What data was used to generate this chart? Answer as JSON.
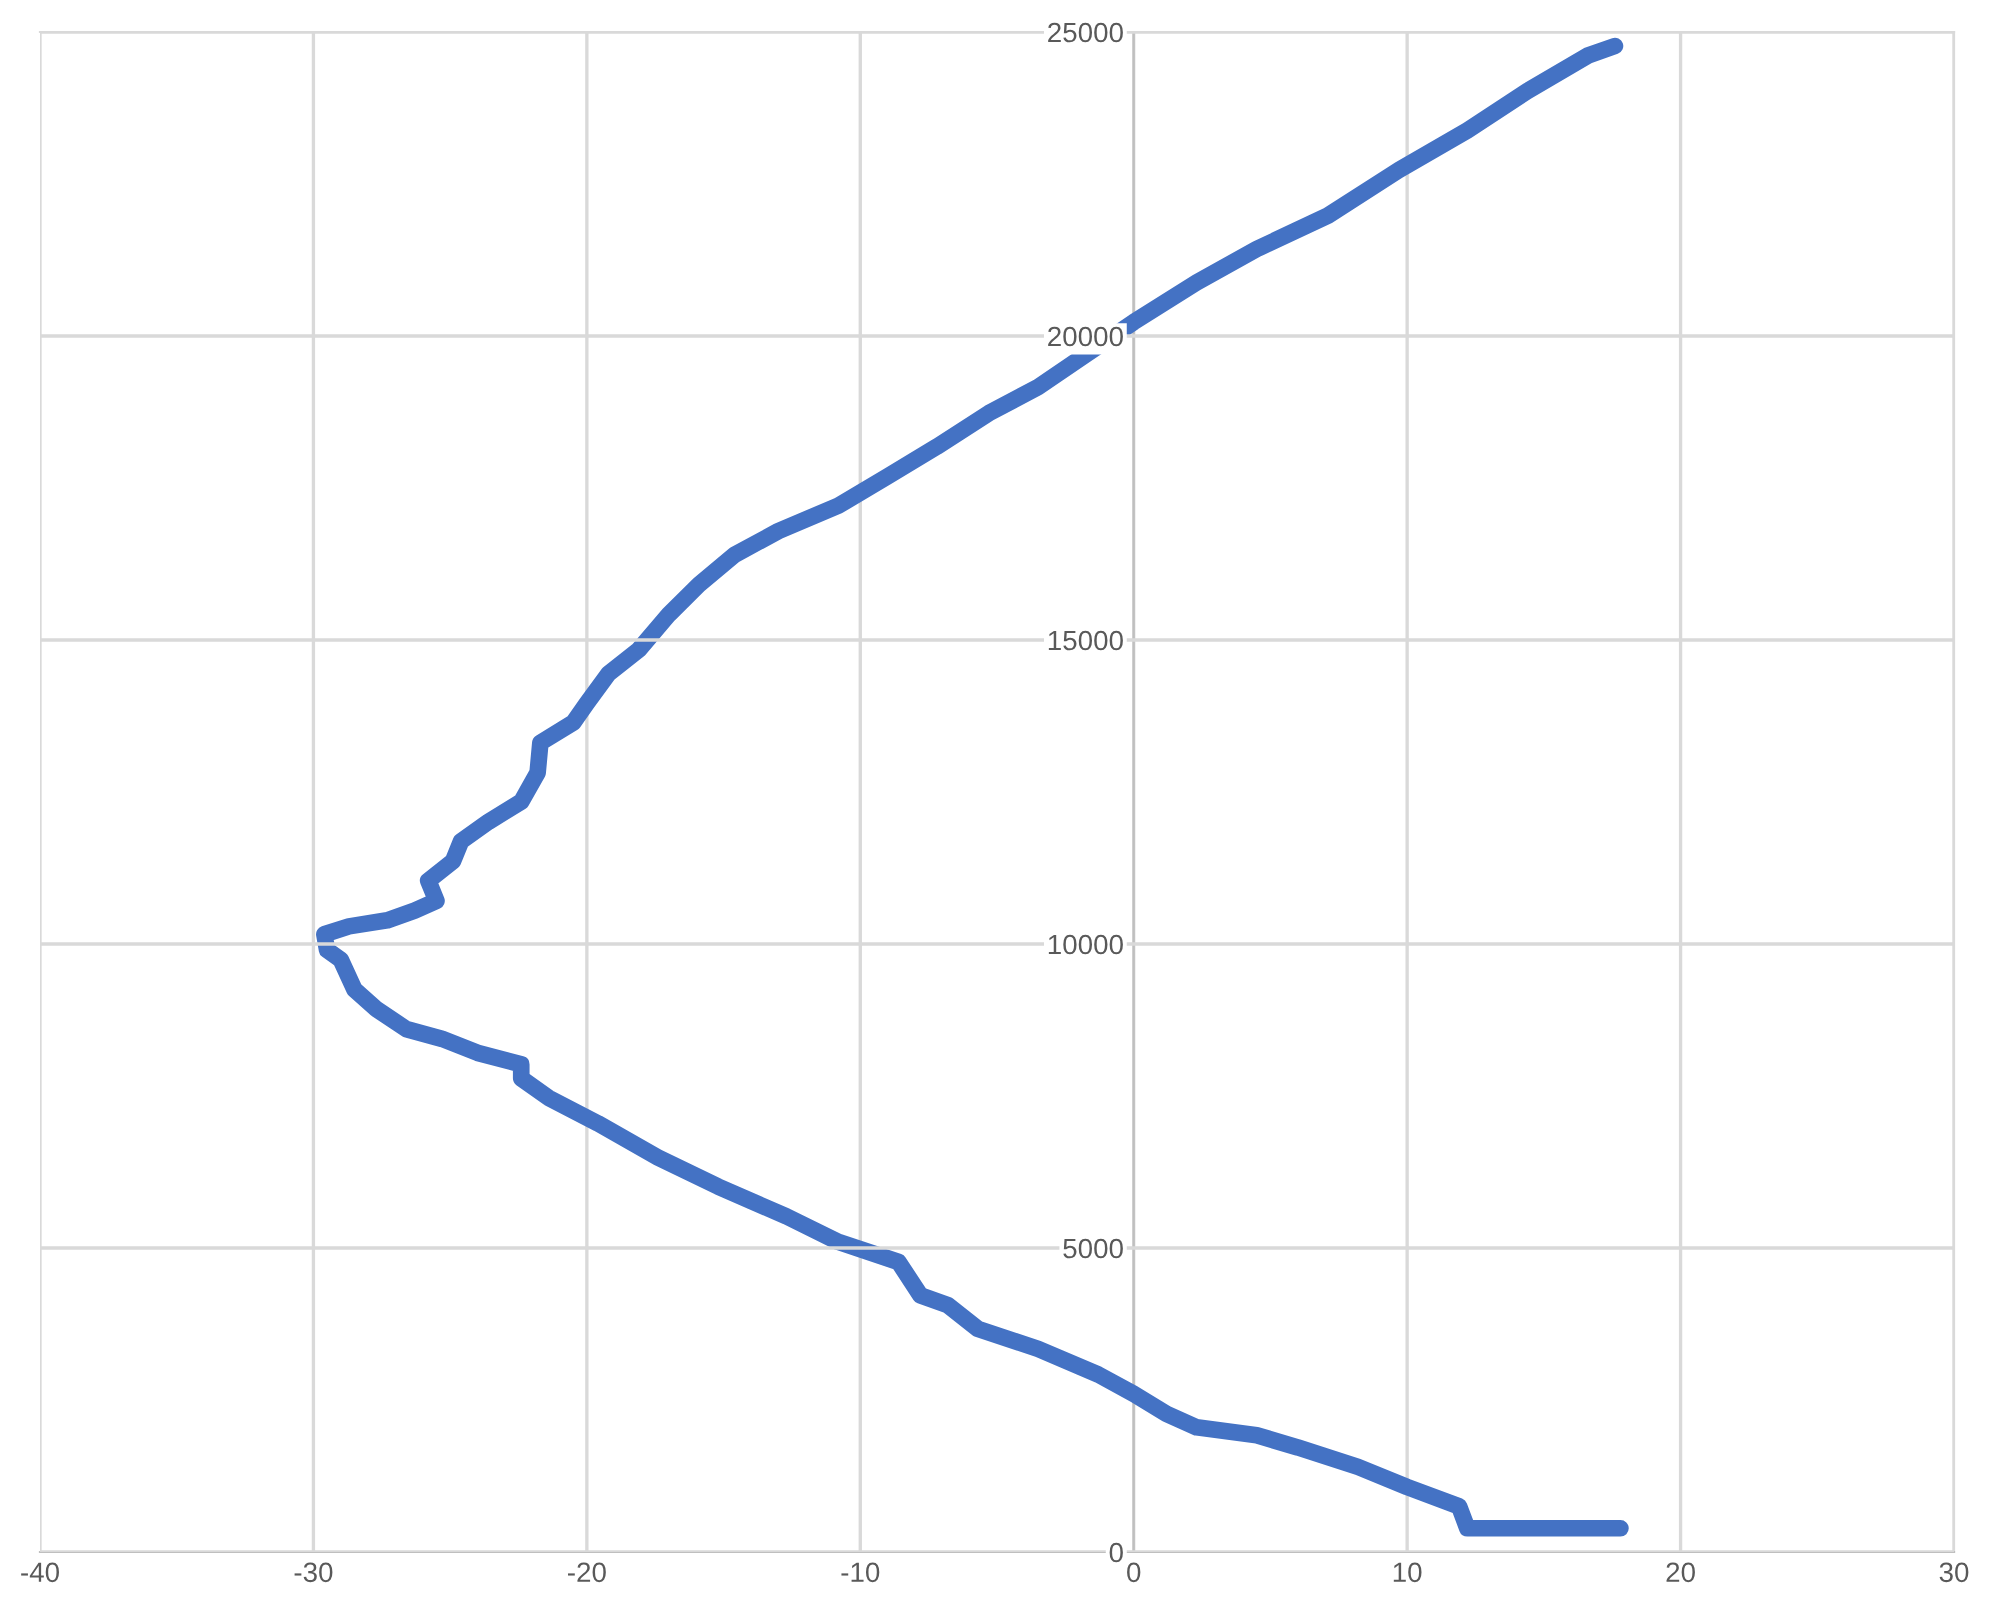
{
  "chart_data": {
    "type": "line",
    "color": "#4472c4",
    "grid": true,
    "marker": "none",
    "line_style": "solid",
    "xlim": [
      -40,
      30
    ],
    "xticks": [
      -40,
      -30,
      -20,
      -10,
      0,
      10,
      20,
      30
    ],
    "ylim": [
      0,
      25000
    ],
    "yticks": [
      0,
      5000,
      10000,
      15000,
      20000,
      25000
    ],
    "x": [
      17.8,
      12.2,
      11.9,
      10.0,
      8.2,
      6.0,
      4.5,
      2.3,
      1.2,
      0,
      -1.3,
      -3.5,
      -5.7,
      -6.8,
      -7.8,
      -8.6,
      -10.8,
      -12.7,
      -15.2,
      -17.4,
      -19.6,
      -21.4,
      -22.4,
      -22.4,
      -24.0,
      -25.3,
      -26.6,
      -27.7,
      -28.5,
      -29.0,
      -29.5,
      -29.6,
      -28.7,
      -27.3,
      -26.3,
      -25.5,
      -25.8,
      -24.9,
      -24.6,
      -23.6,
      -22.4,
      -21.8,
      -21.7,
      -20.5,
      -20.0,
      -19.2,
      -18.1,
      -17.0,
      -15.9,
      -14.6,
      -13.0,
      -10.8,
      -9.0,
      -7.2,
      -5.3,
      -3.5,
      -1.7,
      0,
      2.3,
      4.5,
      7.1,
      9.7,
      12.2,
      14.4,
      16.6,
      17.6
    ],
    "values": [
      390,
      390,
      750,
      1070,
      1400,
      1720,
      1920,
      2050,
      2270,
      2600,
      2920,
      3340,
      3670,
      4060,
      4220,
      4770,
      5100,
      5520,
      6010,
      6490,
      7050,
      7470,
      7790,
      8020,
      8210,
      8440,
      8600,
      8930,
      9250,
      9740,
      9900,
      10160,
      10290,
      10390,
      10550,
      10710,
      11040,
      11360,
      11690,
      12010,
      12340,
      12820,
      13310,
      13640,
      13960,
      14450,
      14840,
      15420,
      15910,
      16400,
      16790,
      17210,
      17690,
      18180,
      18730,
      19160,
      19710,
      20230,
      20880,
      21430,
      21980,
      22730,
      23380,
      24030,
      24610,
      24770
    ]
  }
}
